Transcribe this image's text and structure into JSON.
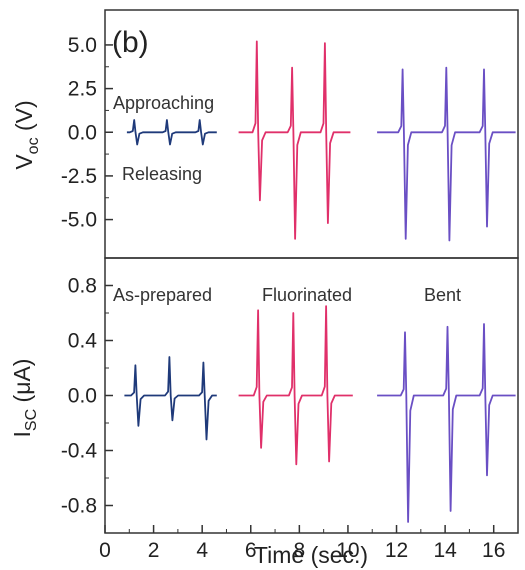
{
  "chart_data": [
    {
      "type": "line",
      "panel_label": "(b)",
      "ylabel": "V",
      "ylabel_sub": "oc",
      "ylabel_unit": " (V)",
      "ylim": [
        -7.2,
        7.0
      ],
      "yticks": [
        5.0,
        2.5,
        0.0,
        -2.5,
        -5.0
      ],
      "ytick_labels": [
        "5.0",
        "2.5",
        "0.0",
        "-2.5",
        "-5.0"
      ],
      "xlim": [
        0,
        17
      ],
      "annotations": [
        "Approaching",
        "Releasing"
      ],
      "series": [
        {
          "color": "#1f3a7a",
          "peaks": [
            {
              "t": 1.2,
              "pos": 0.7,
              "neg": -0.7
            },
            {
              "t": 2.55,
              "pos": 0.7,
              "neg": -0.7
            },
            {
              "t": 3.9,
              "pos": 0.7,
              "neg": -0.7
            }
          ],
          "t_range": [
            0.9,
            4.6
          ]
        },
        {
          "color": "#e0306a",
          "peaks": [
            {
              "t": 6.25,
              "pos": 5.2,
              "neg": -3.9
            },
            {
              "t": 7.7,
              "pos": 3.7,
              "neg": -6.1
            },
            {
              "t": 9.05,
              "pos": 5.1,
              "neg": -5.2
            }
          ],
          "t_range": [
            5.5,
            10.1
          ]
        },
        {
          "color": "#6a4fc4",
          "peaks": [
            {
              "t": 12.25,
              "pos": 3.6,
              "neg": -6.1
            },
            {
              "t": 14.05,
              "pos": 3.7,
              "neg": -6.2
            },
            {
              "t": 15.6,
              "pos": 3.6,
              "neg": -5.4
            }
          ],
          "t_range": [
            11.2,
            16.9
          ]
        }
      ]
    },
    {
      "type": "line",
      "ylabel": "I",
      "ylabel_sub": "SC",
      "ylabel_unit": " (μA)",
      "xlabel": "Time (sec.)",
      "ylim": [
        -1.0,
        1.0
      ],
      "yticks": [
        0.8,
        0.4,
        0.0,
        -0.4,
        -0.8
      ],
      "ytick_labels": [
        "0.8",
        "0.4",
        "0.0",
        "-0.4",
        "-0.8"
      ],
      "xlim": [
        0,
        17
      ],
      "xticks": [
        0,
        2,
        4,
        6,
        8,
        10,
        12,
        14,
        16
      ],
      "xtick_labels": [
        "0",
        "2",
        "4",
        "6",
        "8",
        "10",
        "12",
        "14",
        "16"
      ],
      "annotations": [
        "As-prepared",
        "Fluorinated",
        "Bent"
      ],
      "series": [
        {
          "name": "As-prepared",
          "color": "#1f3a7a",
          "peaks": [
            {
              "t": 1.25,
              "pos": 0.22,
              "neg": -0.22
            },
            {
              "t": 2.65,
              "pos": 0.28,
              "neg": -0.18
            },
            {
              "t": 4.05,
              "pos": 0.24,
              "neg": -0.32
            }
          ],
          "t_range": [
            0.8,
            4.6
          ]
        },
        {
          "name": "Fluorinated",
          "color": "#e0306a",
          "peaks": [
            {
              "t": 6.3,
              "pos": 0.62,
              "neg": -0.38
            },
            {
              "t": 7.75,
              "pos": 0.6,
              "neg": -0.5
            },
            {
              "t": 9.1,
              "pos": 0.65,
              "neg": -0.48
            }
          ],
          "t_range": [
            5.5,
            10.2
          ]
        },
        {
          "name": "Bent",
          "color": "#6a4fc4",
          "peaks": [
            {
              "t": 12.35,
              "pos": 0.46,
              "neg": -0.92
            },
            {
              "t": 14.1,
              "pos": 0.5,
              "neg": -0.84
            },
            {
              "t": 15.6,
              "pos": 0.52,
              "neg": -0.58
            }
          ],
          "t_range": [
            11.2,
            16.9
          ]
        }
      ]
    }
  ]
}
